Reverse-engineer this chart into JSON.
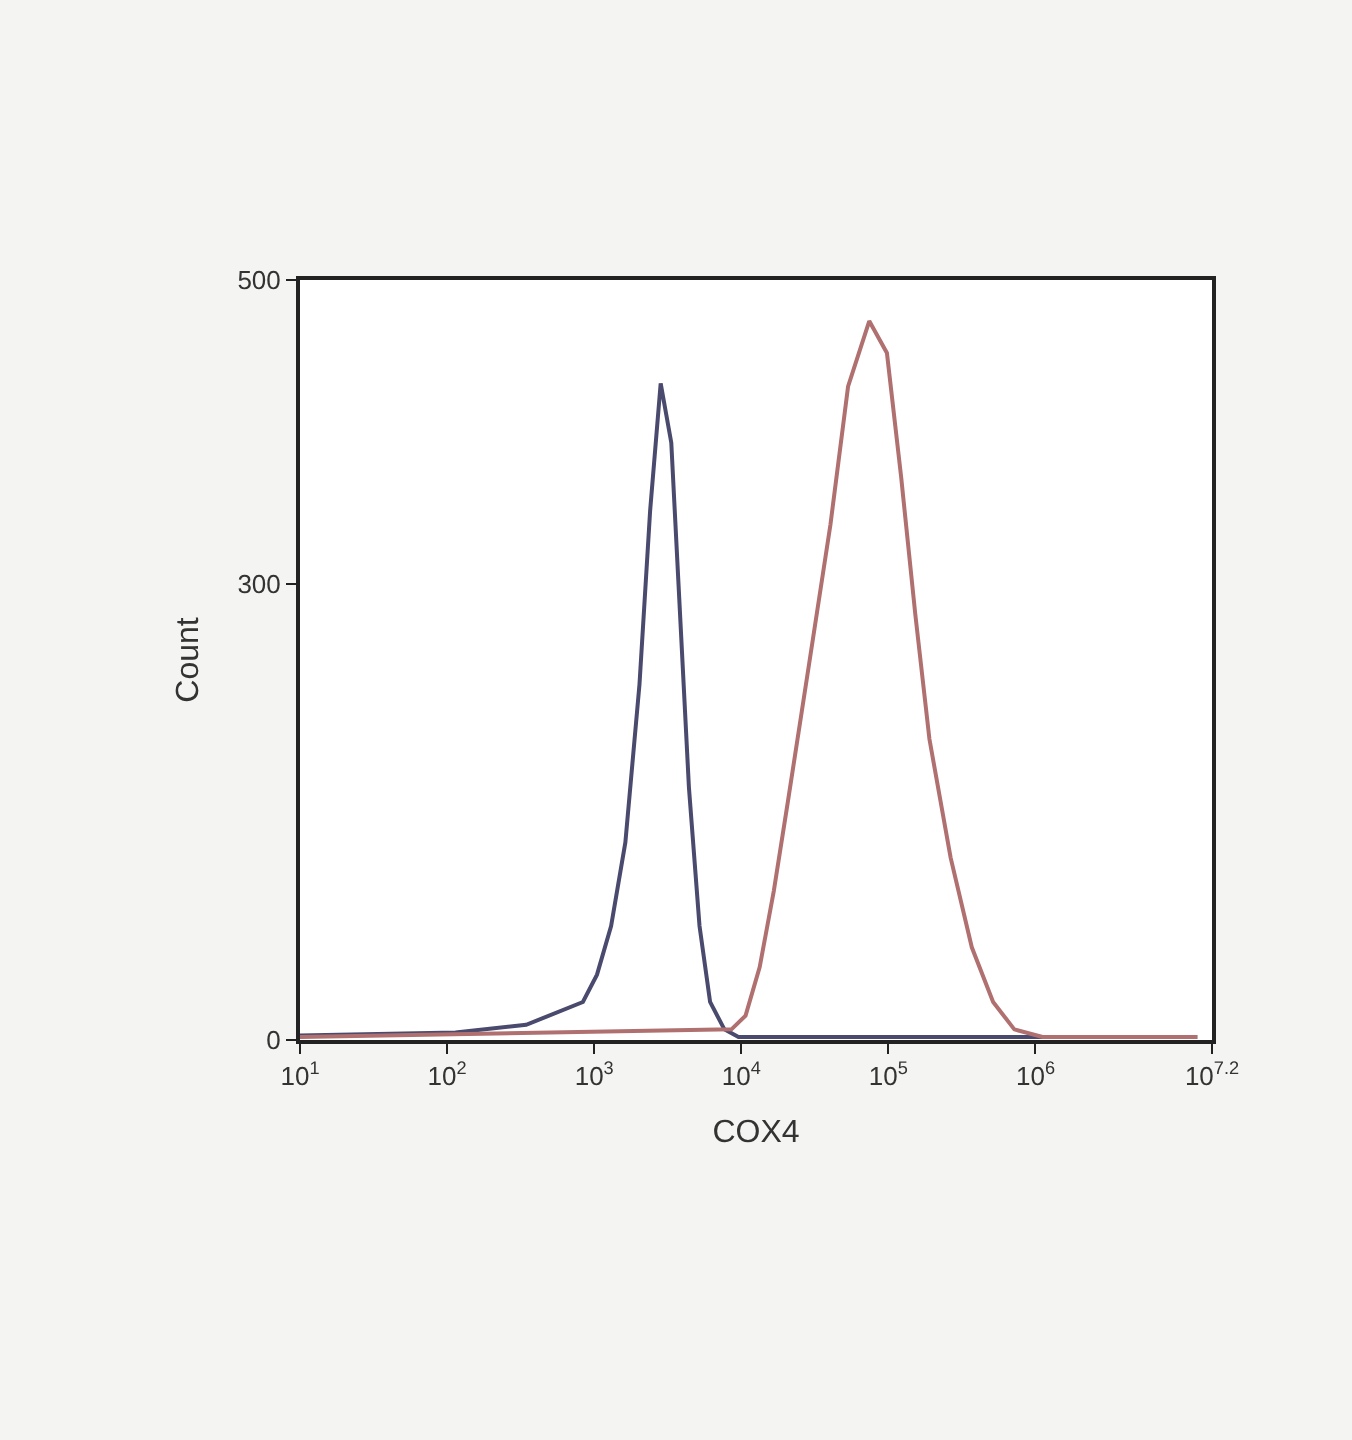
{
  "chart_data": {
    "type": "line",
    "xlabel": "COX4",
    "ylabel": "Count",
    "log": "x",
    "xlim": [
      10,
      15848932
    ],
    "ylim": [
      0,
      500
    ],
    "xticks": [
      {
        "value": 10,
        "label": "10$^{1}$"
      },
      {
        "value": 100,
        "label": "10$^{2}$"
      },
      {
        "value": 1000,
        "label": "10$^{3}$"
      },
      {
        "value": 10000,
        "label": "10$^{4}$"
      },
      {
        "value": 100000,
        "label": "10$^{5}$"
      },
      {
        "value": 1000000,
        "label": "10$^{6}$"
      },
      {
        "value": 15848932,
        "label": "10$^{7.2}$"
      }
    ],
    "yticks": [
      0,
      300,
      500
    ],
    "marker": "none",
    "line_style": "solid",
    "series": [
      {
        "color": "#4a4a6e",
        "x": [
          10,
          114,
          345,
          838,
          1045,
          1303,
          1629,
          2032,
          2399,
          2831,
          3342,
          3733,
          4406,
          5200,
          6138,
          7674,
          9572,
          12590000
        ],
        "values": [
          3,
          5,
          10,
          25,
          43,
          75,
          130,
          234,
          348,
          432,
          393,
          302,
          166,
          75,
          25,
          7,
          2,
          2
        ]
      },
      {
        "color": "#b07070",
        "x": [
          10,
          8570,
          10690,
          13340,
          16630,
          20750,
          28970,
          40360,
          53210,
          74130,
          97720,
          122200,
          152400,
          190100,
          264900,
          369000,
          515200,
          717800,
          1117000,
          12590000
        ],
        "values": [
          2,
          7,
          16,
          48,
          98,
          157,
          248,
          339,
          430,
          473,
          452,
          370,
          280,
          198,
          120,
          61,
          25,
          7,
          2,
          2
        ]
      }
    ]
  }
}
